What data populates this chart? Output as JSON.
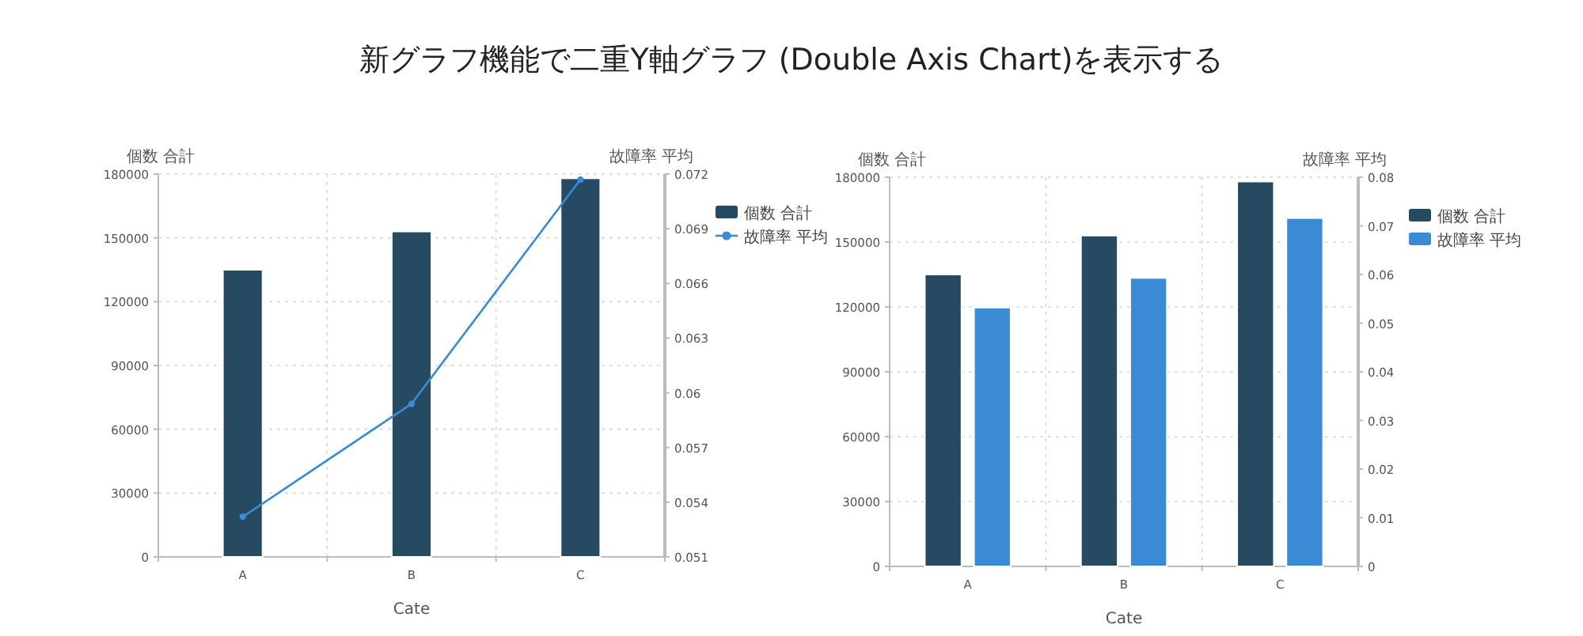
{
  "chart_data": [
    {
      "type": "bar",
      "title": "新グラフ機能で二重Y軸グラフ (Double Axis Chart)を表示する",
      "xlabel": "Cate",
      "ylabel": "個数 合計",
      "y2label": "故障率 平均",
      "categories": [
        "A",
        "B",
        "C"
      ],
      "series": [
        {
          "name": "個数 合計",
          "color": "#254a61",
          "values": [
            135000,
            153000,
            178000
          ]
        },
        {
          "name": "故障率 平均",
          "type": "line",
          "axis": "y2",
          "color": "#3b8ad6",
          "values": [
            0.0532,
            0.0594,
            0.0717
          ]
        }
      ],
      "ylim": [
        0,
        180000
      ],
      "yticks": [
        0,
        30000,
        60000,
        90000,
        120000,
        150000,
        180000
      ],
      "y2lim": [
        0.051,
        0.072
      ],
      "y2ticks": [
        0.051,
        0.054,
        0.057,
        0.06,
        0.063,
        0.066,
        0.069,
        0.072
      ],
      "grid": true,
      "legend": "right",
      "marker": "circle"
    },
    {
      "type": "bar",
      "xlabel": "Cate",
      "ylabel": "個数 合計",
      "y2label": "故障率 平均",
      "categories": [
        "A",
        "B",
        "C"
      ],
      "series": [
        {
          "name": "個数 合計",
          "color": "#254a61",
          "values": [
            135000,
            153000,
            178000
          ]
        },
        {
          "name": "故障率 平均",
          "axis": "y2",
          "color": "#3b8ad6",
          "values": [
            0.0532,
            0.0593,
            0.0716
          ]
        }
      ],
      "ylim": [
        0,
        180000
      ],
      "yticks": [
        0,
        30000,
        60000,
        90000,
        120000,
        150000,
        180000
      ],
      "y2lim": [
        0,
        0.08
      ],
      "y2ticks": [
        0,
        0.01,
        0.02,
        0.03,
        0.04,
        0.05,
        0.06,
        0.07,
        0.08
      ],
      "grid": true,
      "legend": "right"
    }
  ]
}
